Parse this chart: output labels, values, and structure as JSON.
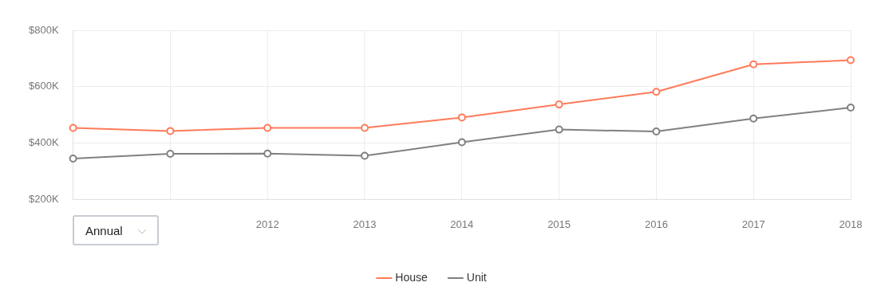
{
  "chart_data": {
    "type": "line",
    "categories": [
      null,
      null,
      "2012",
      "2013",
      "2014",
      "2015",
      "2016",
      "2017",
      "2018"
    ],
    "series": [
      {
        "name": "House",
        "color": "#ff7b5a",
        "values": [
          454,
          443,
          454,
          454,
          491,
          537,
          582,
          679,
          694
        ]
      },
      {
        "name": "Unit",
        "color": "#808080",
        "values": [
          345,
          362,
          363,
          355,
          403,
          448,
          441,
          487,
          526
        ]
      }
    ],
    "ylim": [
      200,
      800
    ],
    "yticks": [
      {
        "value": 200,
        "label": "$200K"
      },
      {
        "value": 400,
        "label": "$400K"
      },
      {
        "value": 600,
        "label": "$600K"
      },
      {
        "value": 800,
        "label": "$800K"
      }
    ],
    "grid": true,
    "legend": "bottom",
    "marker": "circle",
    "line_style": "solid",
    "annotations": [
      "Annual"
    ]
  }
}
